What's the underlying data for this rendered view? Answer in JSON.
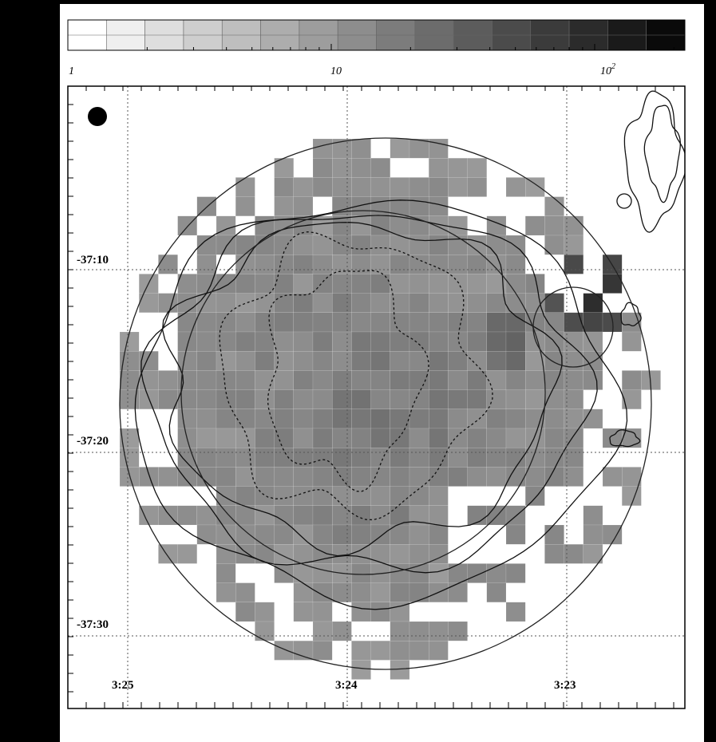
{
  "colorbar": {
    "labels": [
      {
        "text": "1"
      },
      {
        "text": "10"
      },
      {
        "text": "10",
        "superscript": "2"
      }
    ]
  },
  "map": {
    "dec_labels": [
      "-37:10",
      "-37:20",
      "-37:30"
    ],
    "ra_labels": [
      "3:25",
      "3:24",
      "3:23"
    ]
  }
}
